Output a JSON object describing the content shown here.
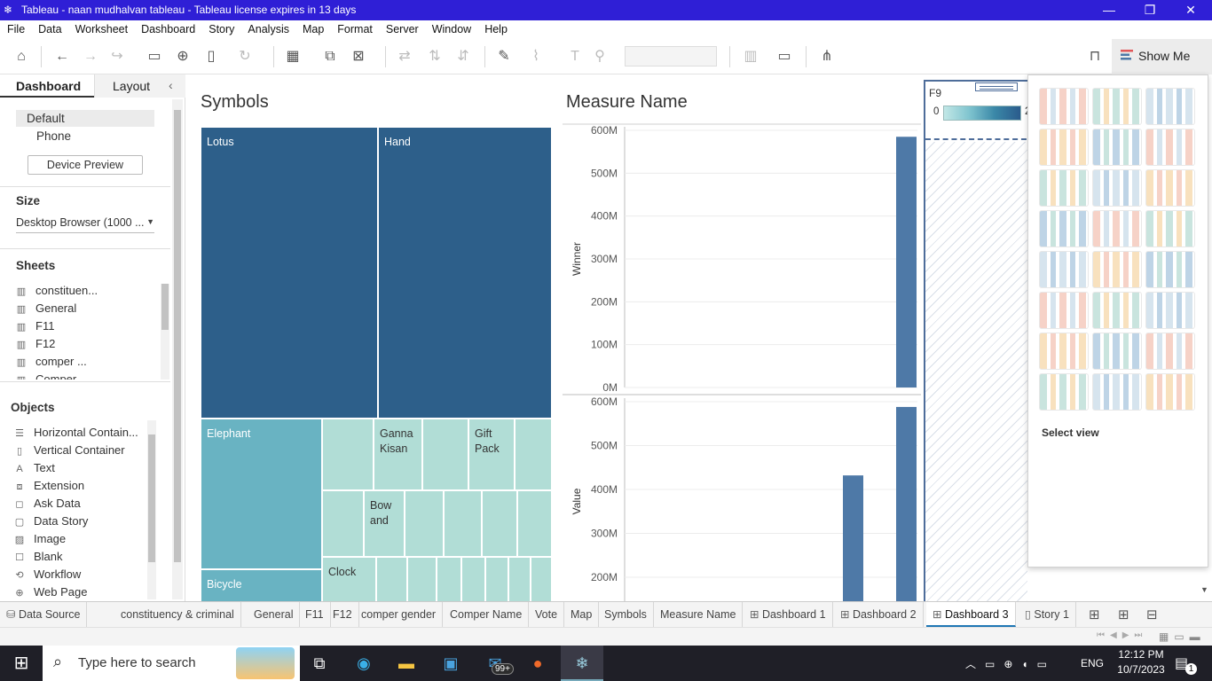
{
  "window": {
    "title": "Tableau - naan mudhalvan tableau - Tableau license expires in 13 days",
    "controls": [
      "—",
      "❐",
      "✕"
    ]
  },
  "menu": [
    "File",
    "Data",
    "Worksheet",
    "Dashboard",
    "Story",
    "Analysis",
    "Map",
    "Format",
    "Server",
    "Window",
    "Help"
  ],
  "toolbar": {
    "show_me_label": "Show Me"
  },
  "left_pane": {
    "tabs": {
      "dashboard": "Dashboard",
      "layout": "Layout"
    },
    "device": {
      "default": "Default",
      "phone": "Phone",
      "preview_button": "Device Preview"
    },
    "size": {
      "heading": "Size",
      "value": "Desktop Browser (1000 ..."
    },
    "sheets": {
      "heading": "Sheets",
      "items": [
        "constituen...",
        "General",
        "F11",
        "F12",
        "comper ...",
        "Comper"
      ]
    },
    "objects": {
      "heading": "Objects",
      "items": [
        {
          "label": "Horizontal Contain...",
          "icon": "horizontal-container-icon"
        },
        {
          "label": "Vertical Container",
          "icon": "vertical-container-icon"
        },
        {
          "label": "Text",
          "icon": "text-icon"
        },
        {
          "label": "Extension",
          "icon": "extension-icon"
        },
        {
          "label": "Ask Data",
          "icon": "ask-data-icon"
        },
        {
          "label": "Data Story",
          "icon": "data-story-icon"
        },
        {
          "label": "Image",
          "icon": "image-icon"
        },
        {
          "label": "Blank",
          "icon": "blank-icon"
        },
        {
          "label": "Workflow",
          "icon": "workflow-icon"
        },
        {
          "label": "Web Page",
          "icon": "web-page-icon"
        }
      ]
    }
  },
  "canvas": {
    "symbols_title": "Symbols",
    "measure_title": "Measure Name",
    "f9_title": "F9",
    "f9_legend_min": "0",
    "f9_legend_max": "2",
    "treemap": [
      {
        "label": "Lotus",
        "color": "#2d5f8a"
      },
      {
        "label": "Hand",
        "color": "#2d5f8a"
      },
      {
        "label": "Elephant",
        "color": "#69b3c2"
      },
      {
        "label": "Ganna\nKisan",
        "color": "#b1ddd6"
      },
      {
        "label": "Gift\nPack",
        "color": "#b1ddd6"
      },
      {
        "label": "Bow\nand",
        "color": "#b1ddd6"
      },
      {
        "label": "Bicycle",
        "color": "#69b3c2"
      },
      {
        "label": "Clock",
        "color": "#b1ddd6"
      }
    ]
  },
  "chart_data": [
    {
      "type": "bar",
      "ylabel": "Winner",
      "ticks": [
        "600M",
        "500M",
        "400M",
        "300M",
        "200M",
        "100M",
        "0M"
      ],
      "ylim": [
        0,
        600000000
      ],
      "values": [
        585000000
      ],
      "color": "#4e79a7"
    },
    {
      "type": "bar",
      "ylabel": "Value",
      "ticks": [
        "600M",
        "500M",
        "400M",
        "300M",
        "200M"
      ],
      "ylim": [
        170000000,
        600000000
      ],
      "values": [
        432000000,
        588000000
      ],
      "color": "#4e79a7"
    }
  ],
  "show_me_panel": {
    "footer": "Select view"
  },
  "sheet_tabs": [
    {
      "label": "Data Source",
      "icon": "database-icon"
    },
    {
      "label": "constituency & criminal"
    },
    {
      "label": "General"
    },
    {
      "label": "F11"
    },
    {
      "label": "F12"
    },
    {
      "label": "comper gender"
    },
    {
      "label": "Comper Name"
    },
    {
      "label": "Vote"
    },
    {
      "label": "Map"
    },
    {
      "label": "Symbols"
    },
    {
      "label": "Measure Name"
    },
    {
      "label": "Dashboard 1",
      "icon": "dashboard-icon"
    },
    {
      "label": "Dashboard 2",
      "icon": "dashboard-icon"
    },
    {
      "label": "Dashboard 3",
      "icon": "dashboard-icon",
      "active": true
    },
    {
      "label": "Story 1",
      "icon": "story-icon"
    }
  ],
  "taskbar": {
    "search_placeholder": "Type here to search",
    "mail_badge": "99+",
    "lang": "ENG",
    "time": "12:12 PM",
    "date": "10/7/2023",
    "notif_count": "1"
  }
}
